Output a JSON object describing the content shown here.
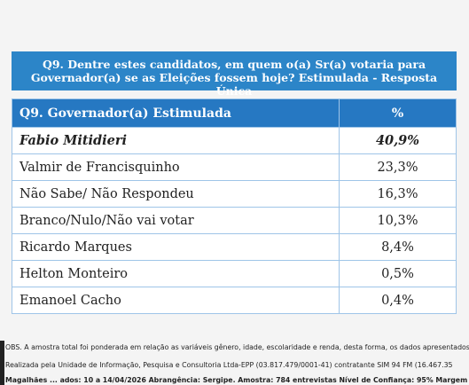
{
  "header": {
    "title_lines": [
      "Q9. Dentre estes candidatos, em quem o(a) Sr(a) votaria para",
      "Governador(a) se as Eleições fossem hoje? Estimulada - Resposta Única"
    ]
  },
  "table": {
    "columns": [
      "Q9. Governador(a) Estimulada",
      "%"
    ],
    "rows": [
      [
        "Fabio Mitidieri",
        "40,9%"
      ],
      [
        "Valmir de Francisquinho",
        "23,3%"
      ],
      [
        "Não Sabe/ Não Respondeu",
        "16,3%"
      ],
      [
        "Branco/Nulo/Não vai votar",
        "10,3%"
      ],
      [
        "Ricardo Marques",
        "8,4%"
      ],
      [
        "Helton Monteiro",
        "0,5%"
      ],
      [
        "Emanoel Cacho",
        "0,4%"
      ]
    ]
  },
  "footer": {
    "notes": [
      "OBS. A amostra total foi ponderada em relação as variáveis gênero, idade, escolaridade e renda, desta forma, os dados apresentados",
      "Realizada pela Unidade de Informação, Pesquisa e Consultoria Ltda-EPP (03.817.479/0001-41) contratante SIM 94 FM (16.467.35",
      "Magalhães ... ados: 10 a 14/04/2026 Abrangência: Sergipe. Amostra: 784 entrevistas Nível de Confiança: 95% Margem"
    ]
  }
}
